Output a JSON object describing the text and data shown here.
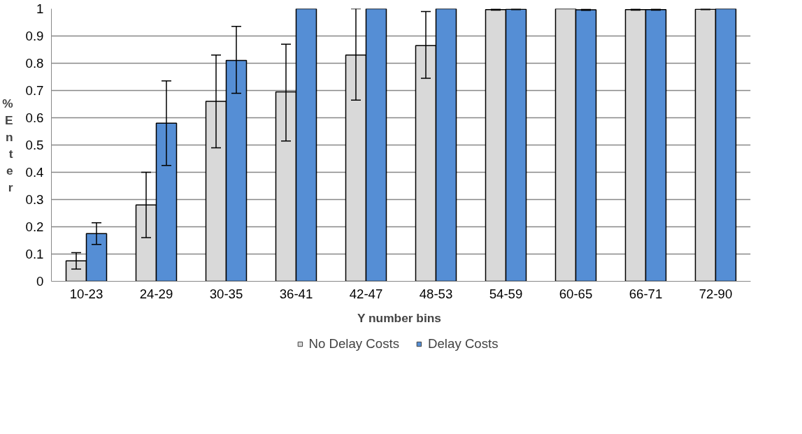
{
  "chart_data": {
    "type": "bar",
    "xlabel": "Y  number bins",
    "ylabel": "% Enter",
    "categories": [
      "10-23",
      "24-29",
      "30-35",
      "36-41",
      "42-47",
      "48-53",
      "54-59",
      "60-65",
      "66-71",
      "72-90"
    ],
    "series": [
      {
        "name": "No Delay Costs",
        "color": "#d9d9d9",
        "values": [
          0.075,
          0.28,
          0.66,
          0.695,
          0.83,
          0.865,
          0.997,
          1.0,
          0.997,
          0.998
        ],
        "errors": [
          [
            0.045,
            0.105
          ],
          [
            0.16,
            0.4
          ],
          [
            0.49,
            0.83
          ],
          [
            0.515,
            0.87
          ],
          [
            0.665,
            1.0
          ],
          [
            0.745,
            0.99
          ],
          [
            0.995,
            0.999
          ],
          null,
          [
            0.995,
            0.999
          ],
          [
            0.997,
            0.999
          ]
        ]
      },
      {
        "name": "Delay Costs",
        "color": "#558ed5",
        "values": [
          0.175,
          0.58,
          0.81,
          1.0,
          1.0,
          1.0,
          0.998,
          0.996,
          0.997,
          1.0
        ],
        "errors": [
          [
            0.135,
            0.215
          ],
          [
            0.425,
            0.735
          ],
          [
            0.69,
            0.935
          ],
          null,
          null,
          null,
          [
            0.997,
            0.999
          ],
          [
            0.994,
            0.998
          ],
          [
            0.995,
            0.999
          ],
          null
        ]
      }
    ],
    "ylim": [
      0,
      1
    ],
    "yticks": [
      0,
      0.1,
      0.2,
      0.3,
      0.4,
      0.5,
      0.6,
      0.7,
      0.8,
      0.9,
      1
    ],
    "grid": "y",
    "legend": "bottom"
  }
}
